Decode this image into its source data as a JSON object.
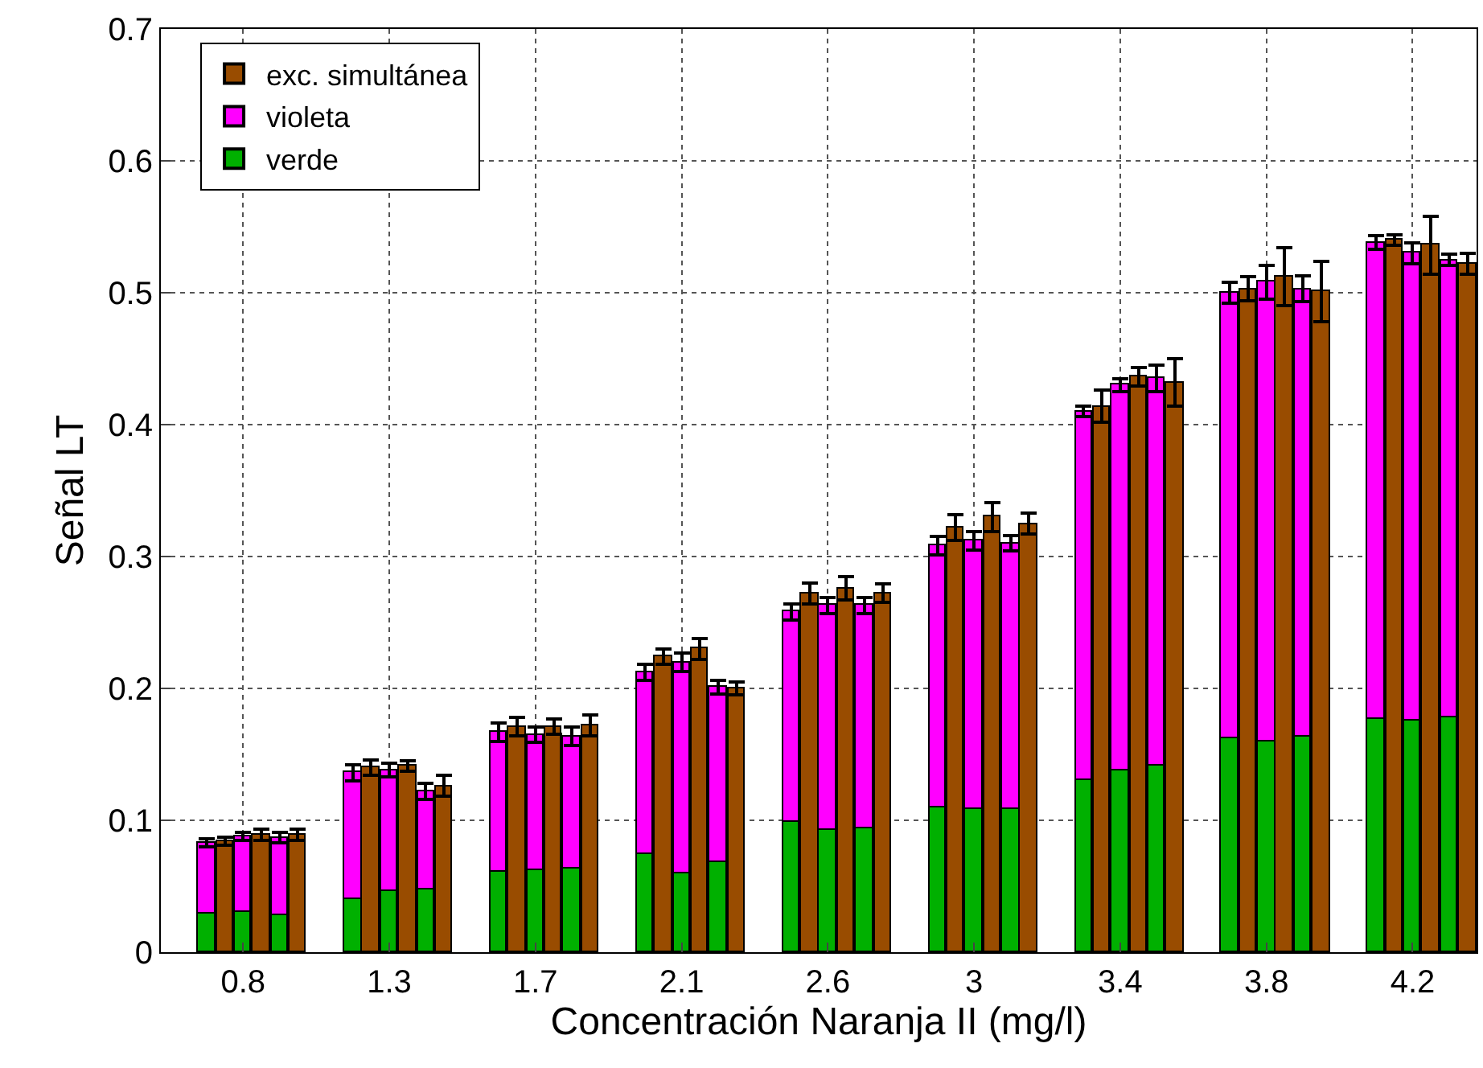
{
  "chart_data": {
    "type": "bar",
    "stacked": true,
    "xlabel": "Concentración Naranja II (mg/l)",
    "ylabel": "Señal LT",
    "categories": [
      null,
      null,
      null,
      null,
      "0.8",
      null,
      null,
      null,
      null,
      null,
      null,
      null,
      "1.3",
      null,
      null,
      null,
      null,
      null,
      null,
      null,
      "1.7",
      null,
      null,
      null,
      null,
      null,
      null,
      null,
      "2.1",
      null,
      null,
      null,
      null,
      null,
      null,
      null,
      "2.6",
      null,
      null,
      null,
      null,
      null,
      null,
      null,
      "3",
      null,
      null,
      null,
      null,
      null,
      null,
      null,
      "3.4",
      null,
      null,
      null,
      null,
      null,
      null,
      null,
      "3.8",
      null,
      null,
      null,
      null,
      null,
      null,
      null,
      "4.2",
      null,
      null,
      null
    ],
    "series": [
      {
        "name": "verde",
        "color": "#00b000",
        "values": [
          null,
          null,
          0.029,
          null,
          0.031,
          null,
          0.028,
          null,
          null,
          null,
          0.04,
          null,
          0.046,
          null,
          0.047,
          null,
          null,
          null,
          0.061,
          null,
          0.062,
          null,
          0.064,
          null,
          null,
          null,
          0.074,
          null,
          0.06,
          null,
          0.068,
          null,
          null,
          null,
          0.099,
          null,
          0.093,
          null,
          0.094,
          null,
          null,
          null,
          0.11,
          null,
          0.108,
          null,
          0.108,
          null,
          null,
          null,
          0.13,
          null,
          0.138,
          null,
          0.142,
          null,
          null,
          null,
          0.162,
          null,
          0.16,
          null,
          0.164,
          null,
          null,
          null,
          0.177,
          null,
          0.176,
          null,
          0.178,
          null
        ]
      },
      {
        "name": "violeta",
        "color": "#ff00ff",
        "values": [
          null,
          null,
          0.054,
          null,
          0.057,
          null,
          0.059,
          null,
          null,
          null,
          0.096,
          null,
          0.092,
          null,
          0.075,
          null,
          null,
          null,
          0.106,
          null,
          0.103,
          null,
          0.1,
          null,
          null,
          null,
          0.138,
          null,
          0.16,
          null,
          0.133,
          null,
          null,
          null,
          0.159,
          null,
          0.17,
          null,
          0.169,
          null,
          null,
          null,
          0.198,
          null,
          0.204,
          null,
          0.202,
          null,
          null,
          null,
          0.28,
          null,
          0.292,
          null,
          0.293,
          null,
          null,
          null,
          0.338,
          null,
          0.348,
          null,
          0.339,
          null,
          null,
          null,
          0.361,
          null,
          0.354,
          null,
          0.347,
          null
        ],
        "errors": [
          null,
          null,
          0.003,
          null,
          0.003,
          null,
          0.004,
          null,
          null,
          null,
          0.006,
          null,
          0.005,
          null,
          0.006,
          null,
          null,
          null,
          0.007,
          null,
          0.006,
          null,
          0.007,
          null,
          null,
          null,
          0.006,
          null,
          0.007,
          null,
          0.005,
          null,
          null,
          null,
          0.006,
          null,
          0.006,
          null,
          0.006,
          null,
          null,
          null,
          0.007,
          null,
          0.007,
          null,
          0.006,
          null,
          null,
          null,
          0.004,
          null,
          0.005,
          null,
          0.01,
          null,
          null,
          null,
          0.008,
          null,
          0.013,
          null,
          0.01,
          null,
          null,
          null,
          0.005,
          null,
          0.008,
          null,
          0.004,
          null
        ]
      },
      {
        "name": "exc. simultánea",
        "color": "#994c00",
        "values": [
          null,
          null,
          null,
          0.084,
          null,
          0.089,
          null,
          0.089,
          null,
          null,
          null,
          0.14,
          null,
          0.141,
          null,
          0.126,
          null,
          null,
          null,
          0.171,
          null,
          0.171,
          null,
          0.172,
          null,
          null,
          null,
          0.224,
          null,
          0.23,
          null,
          0.2,
          null,
          null,
          null,
          0.272,
          null,
          0.276,
          null,
          0.272,
          null,
          null,
          null,
          0.322,
          null,
          0.33,
          null,
          0.325,
          null,
          null,
          null,
          0.414,
          null,
          0.436,
          null,
          0.432,
          null,
          null,
          null,
          0.503,
          null,
          0.512,
          null,
          0.501,
          null,
          null,
          null,
          0.54,
          null,
          0.536,
          null,
          0.522
        ],
        "errors": [
          null,
          null,
          null,
          0.003,
          null,
          0.004,
          null,
          0.004,
          null,
          null,
          null,
          0.006,
          null,
          0.004,
          null,
          0.008,
          null,
          null,
          null,
          0.007,
          null,
          0.006,
          null,
          0.008,
          null,
          null,
          null,
          0.006,
          null,
          0.008,
          null,
          0.005,
          null,
          null,
          null,
          0.008,
          null,
          0.009,
          null,
          0.007,
          null,
          null,
          null,
          0.01,
          null,
          0.011,
          null,
          0.008,
          null,
          null,
          null,
          0.012,
          null,
          0.007,
          null,
          0.018,
          null,
          null,
          null,
          0.009,
          null,
          0.022,
          null,
          0.023,
          null,
          null,
          null,
          0.004,
          null,
          0.022,
          null,
          0.008
        ]
      }
    ],
    "ylim": [
      0,
      0.7
    ],
    "yticks": [
      0,
      0.1,
      0.2,
      0.3,
      0.4,
      0.5,
      0.6,
      0.7
    ],
    "grid": true,
    "legend": "top left"
  }
}
